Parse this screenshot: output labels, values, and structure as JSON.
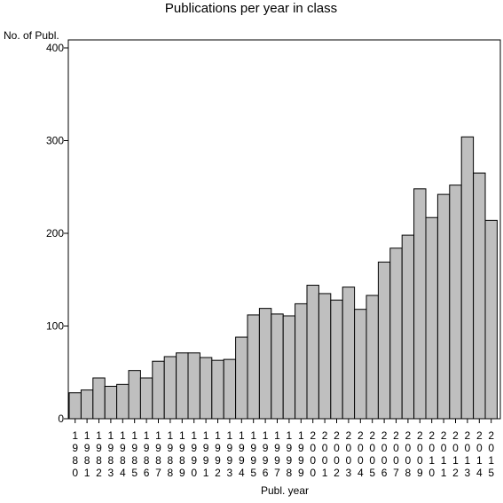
{
  "chart_data": {
    "type": "bar",
    "title": "Publications per year in class",
    "xlabel": "Publ. year",
    "ylabel": "No. of Publ.",
    "ylim": [
      0,
      400
    ],
    "yticks": [
      0,
      100,
      200,
      300,
      400
    ],
    "grid": false,
    "categories": [
      "1980",
      "1981",
      "1982",
      "1983",
      "1984",
      "1985",
      "1986",
      "1987",
      "1988",
      "1989",
      "1990",
      "1991",
      "1992",
      "1993",
      "1994",
      "1995",
      "1996",
      "1997",
      "1998",
      "1999",
      "2000",
      "2001",
      "2002",
      "2003",
      "2004",
      "2005",
      "2006",
      "2007",
      "2008",
      "2009",
      "2010",
      "2011",
      "2012",
      "2013",
      "2014",
      "2015"
    ],
    "values": [
      28,
      31,
      44,
      35,
      37,
      52,
      44,
      62,
      67,
      71,
      71,
      66,
      63,
      64,
      88,
      112,
      119,
      113,
      111,
      124,
      144,
      135,
      128,
      142,
      118,
      133,
      169,
      184,
      198,
      248,
      217,
      242,
      252,
      304,
      265,
      214
    ]
  }
}
